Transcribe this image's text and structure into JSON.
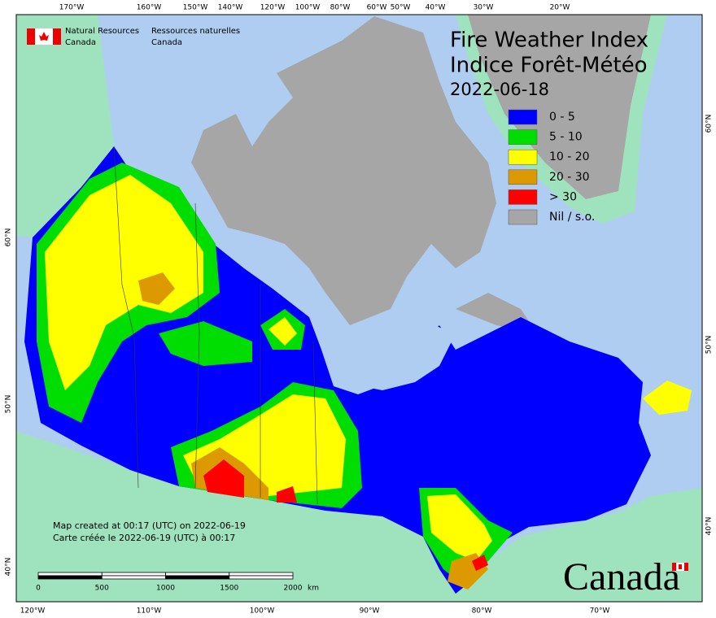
{
  "agency": {
    "en_line1": "Natural Resources",
    "en_line2": "Canada",
    "fr_line1": "Ressources naturelles",
    "fr_line2": "Canada"
  },
  "title": {
    "line1": "Fire Weather Index",
    "line2": "Indice Forêt-Météo",
    "date": "2022-06-18"
  },
  "legend": [
    {
      "label": "0 - 5",
      "color": "#0000ff"
    },
    {
      "label": "5 - 10",
      "color": "#00dd00"
    },
    {
      "label": "10 - 20",
      "color": "#ffff00"
    },
    {
      "label": "20 - 30",
      "color": "#dd9900"
    },
    {
      "label": "> 30",
      "color": "#ff0000"
    },
    {
      "label": "Nil / s.o.",
      "color": "#a6a6a6"
    }
  ],
  "graticule": {
    "top": [
      "170°W",
      "160°W",
      "150°W",
      "140°W",
      "120°W",
      "100°W",
      "80°W",
      "60°W",
      "50°W",
      "40°W",
      "30°W",
      "20°W"
    ],
    "bottom": [
      "120°W",
      "110°W",
      "100°W",
      "90°W",
      "80°W",
      "70°W"
    ],
    "left": [
      "60°N",
      "50°N",
      "40°N"
    ],
    "right": [
      "60°N",
      "50°N",
      "40°N"
    ]
  },
  "credit": {
    "line1": "Map created at 00:17 (UTC) on 2022-06-19",
    "line2": "Carte créée le 2022-06-19 (UTC) à 00:17"
  },
  "scale_bar": {
    "ticks": [
      0,
      500,
      1000,
      1500,
      2000
    ],
    "unit": "km"
  },
  "wordmark": "Canada"
}
